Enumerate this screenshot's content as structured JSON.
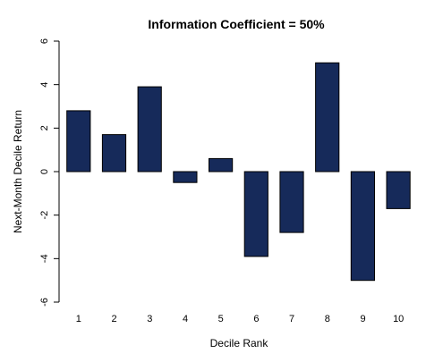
{
  "chart_data": {
    "type": "bar",
    "title": "Information Coefficient = 50%",
    "xlabel": "Decile Rank",
    "ylabel": "Next-Month Decile Return",
    "categories": [
      "1",
      "2",
      "3",
      "4",
      "5",
      "6",
      "7",
      "8",
      "9",
      "10"
    ],
    "values": [
      2.8,
      1.7,
      3.9,
      -0.5,
      0.6,
      -3.9,
      -2.8,
      5.0,
      -5.0,
      -1.7
    ],
    "ylim": [
      -6,
      6
    ],
    "yticks": [
      -6,
      -4,
      -2,
      0,
      2,
      4,
      6
    ],
    "bar_color": "#162a5a",
    "grid": false,
    "legend": "none"
  }
}
